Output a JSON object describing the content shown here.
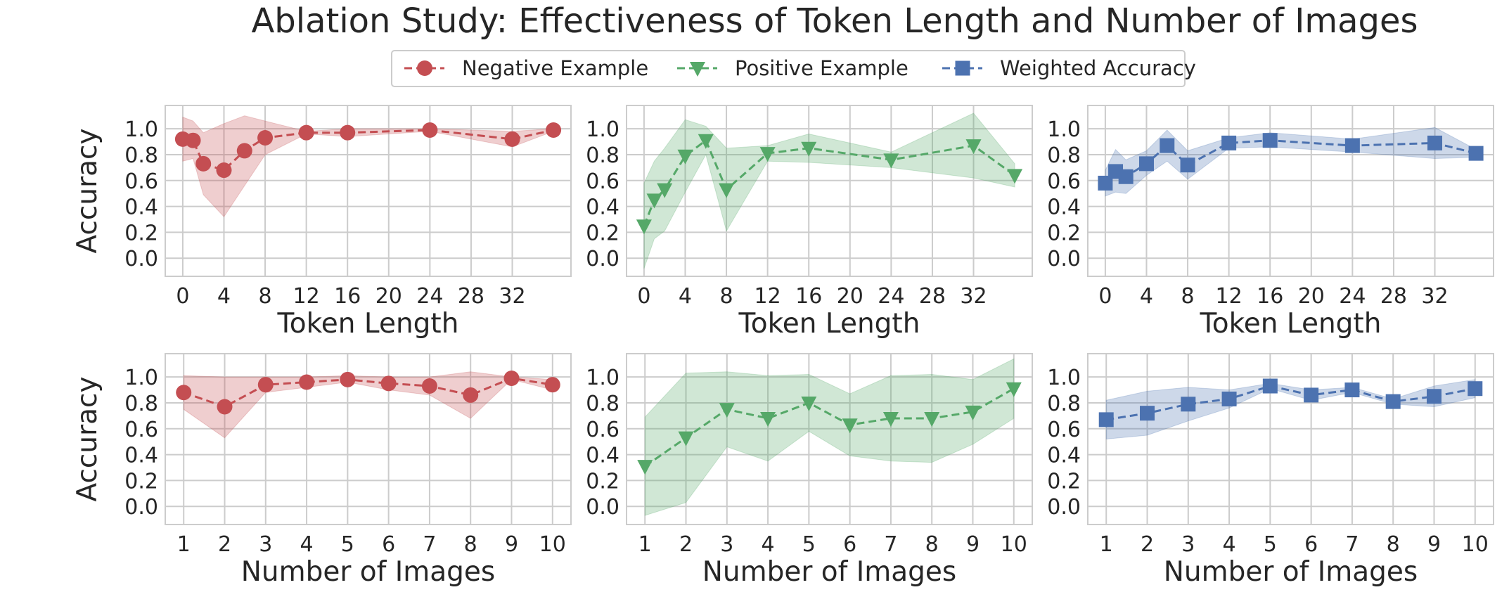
{
  "title": "Ablation Study: Effectiveness of Token Length and Number of Images",
  "legend": [
    {
      "label": "Negative Example",
      "color": "#c44e52",
      "marker": "circle"
    },
    {
      "label": "Positive Example",
      "color": "#55a868",
      "marker": "triangle-down"
    },
    {
      "label": "Weighted Accuracy",
      "color": "#4c72b0",
      "marker": "square"
    }
  ],
  "chart_data": [
    {
      "type": "line",
      "row": 0,
      "col": 0,
      "series_name": "Negative Example",
      "color": "#c44e52",
      "marker": "circle",
      "x": [
        0,
        1,
        2,
        4,
        6,
        8,
        12,
        16,
        24,
        32,
        36
      ],
      "y": [
        0.92,
        0.91,
        0.73,
        0.68,
        0.83,
        0.93,
        0.97,
        0.97,
        0.99,
        0.92,
        0.99
      ],
      "band_lower": [
        0.75,
        0.77,
        0.49,
        0.32,
        0.56,
        0.8,
        0.96,
        0.94,
        0.98,
        0.86,
        0.98
      ],
      "band_upper": [
        1.09,
        1.06,
        0.97,
        1.04,
        1.1,
        1.06,
        0.98,
        1.0,
        1.0,
        0.98,
        1.0
      ],
      "xticks": [
        "0",
        "4",
        "8",
        "12",
        "16",
        "20",
        "24",
        "28",
        "32"
      ],
      "xtick_values": [
        0,
        4,
        8,
        12,
        16,
        20,
        24,
        28,
        32
      ],
      "xlim": [
        -1.7,
        37.7
      ],
      "ylim": [
        -0.14,
        1.18
      ],
      "yticks": [
        "0.0",
        "0.2",
        "0.4",
        "0.6",
        "0.8",
        "1.0"
      ],
      "ytick_values": [
        0,
        0.2,
        0.4,
        0.6,
        0.8,
        1.0
      ],
      "xlabel": "Token Length",
      "ylabel": "Accuracy"
    },
    {
      "type": "line",
      "row": 0,
      "col": 1,
      "series_name": "Positive Example",
      "color": "#55a868",
      "marker": "triangle-down",
      "x": [
        0,
        1,
        2,
        4,
        6,
        8,
        12,
        16,
        24,
        32,
        36
      ],
      "y": [
        0.25,
        0.45,
        0.53,
        0.79,
        0.91,
        0.53,
        0.81,
        0.85,
        0.76,
        0.87,
        0.64
      ],
      "band_lower": [
        -0.08,
        0.15,
        0.21,
        0.51,
        0.8,
        0.21,
        0.75,
        0.74,
        0.7,
        0.62,
        0.55
      ],
      "band_upper": [
        0.58,
        0.75,
        0.85,
        1.07,
        1.02,
        0.85,
        0.87,
        0.96,
        0.82,
        1.12,
        0.73
      ],
      "xticks": [
        "0",
        "4",
        "8",
        "12",
        "16",
        "20",
        "24",
        "28",
        "32"
      ],
      "xtick_values": [
        0,
        4,
        8,
        12,
        16,
        20,
        24,
        28,
        32
      ],
      "xlim": [
        -1.7,
        37.7
      ],
      "ylim": [
        -0.14,
        1.18
      ],
      "yticks": [
        "0.0",
        "0.2",
        "0.4",
        "0.6",
        "0.8",
        "1.0"
      ],
      "ytick_values": [
        0,
        0.2,
        0.4,
        0.6,
        0.8,
        1.0
      ],
      "xlabel": "Token Length",
      "ylabel": ""
    },
    {
      "type": "line",
      "row": 0,
      "col": 2,
      "series_name": "Weighted Accuracy",
      "color": "#4c72b0",
      "marker": "square",
      "x": [
        0,
        1,
        2,
        4,
        6,
        8,
        12,
        16,
        24,
        32,
        36
      ],
      "y": [
        0.58,
        0.67,
        0.63,
        0.73,
        0.87,
        0.72,
        0.89,
        0.91,
        0.87,
        0.89,
        0.81
      ],
      "band_lower": [
        0.48,
        0.51,
        0.5,
        0.64,
        0.75,
        0.61,
        0.85,
        0.86,
        0.82,
        0.77,
        0.78
      ],
      "band_upper": [
        0.68,
        0.84,
        0.76,
        0.83,
        0.99,
        0.83,
        0.93,
        0.97,
        0.92,
        1.01,
        0.84
      ],
      "xticks": [
        "0",
        "4",
        "8",
        "12",
        "16",
        "20",
        "24",
        "28",
        "32"
      ],
      "xtick_values": [
        0,
        4,
        8,
        12,
        16,
        20,
        24,
        28,
        32
      ],
      "xlim": [
        -1.7,
        37.7
      ],
      "ylim": [
        -0.14,
        1.18
      ],
      "yticks": [
        "0.0",
        "0.2",
        "0.4",
        "0.6",
        "0.8",
        "1.0"
      ],
      "ytick_values": [
        0,
        0.2,
        0.4,
        0.6,
        0.8,
        1.0
      ],
      "xlabel": "Token Length",
      "ylabel": ""
    },
    {
      "type": "line",
      "row": 1,
      "col": 0,
      "series_name": "Negative Example",
      "color": "#c44e52",
      "marker": "circle",
      "x": [
        1,
        2,
        3,
        4,
        5,
        6,
        7,
        8,
        9,
        10
      ],
      "y": [
        0.88,
        0.77,
        0.94,
        0.96,
        0.98,
        0.95,
        0.93,
        0.86,
        0.99,
        0.94
      ],
      "band_lower": [
        0.75,
        0.53,
        0.88,
        0.92,
        0.96,
        0.9,
        0.86,
        0.68,
        0.98,
        0.9
      ],
      "band_upper": [
        1.01,
        1.0,
        1.0,
        1.0,
        1.01,
        1.0,
        1.0,
        1.04,
        1.0,
        0.98
      ],
      "xticks": [
        "1",
        "2",
        "3",
        "4",
        "5",
        "6",
        "7",
        "8",
        "9",
        "10"
      ],
      "xtick_values": [
        1,
        2,
        3,
        4,
        5,
        6,
        7,
        8,
        9,
        10
      ],
      "xlim": [
        0.55,
        10.45
      ],
      "ylim": [
        -0.14,
        1.18
      ],
      "yticks": [
        "0.0",
        "0.2",
        "0.4",
        "0.6",
        "0.8",
        "1.0"
      ],
      "ytick_values": [
        0,
        0.2,
        0.4,
        0.6,
        0.8,
        1.0
      ],
      "xlabel": "Number of Images",
      "ylabel": "Accuracy"
    },
    {
      "type": "line",
      "row": 1,
      "col": 1,
      "series_name": "Positive Example",
      "color": "#55a868",
      "marker": "triangle-down",
      "x": [
        1,
        2,
        3,
        4,
        5,
        6,
        7,
        8,
        9,
        10
      ],
      "y": [
        0.31,
        0.53,
        0.75,
        0.68,
        0.8,
        0.63,
        0.68,
        0.68,
        0.73,
        0.91
      ],
      "band_lower": [
        -0.07,
        0.03,
        0.46,
        0.35,
        0.58,
        0.39,
        0.35,
        0.34,
        0.48,
        0.68
      ],
      "band_upper": [
        0.69,
        1.03,
        1.04,
        1.01,
        1.02,
        0.87,
        1.01,
        1.02,
        0.98,
        1.14
      ],
      "xticks": [
        "1",
        "2",
        "3",
        "4",
        "5",
        "6",
        "7",
        "8",
        "9",
        "10"
      ],
      "xtick_values": [
        1,
        2,
        3,
        4,
        5,
        6,
        7,
        8,
        9,
        10
      ],
      "xlim": [
        0.55,
        10.45
      ],
      "ylim": [
        -0.14,
        1.18
      ],
      "yticks": [
        "0.0",
        "0.2",
        "0.4",
        "0.6",
        "0.8",
        "1.0"
      ],
      "ytick_values": [
        0,
        0.2,
        0.4,
        0.6,
        0.8,
        1.0
      ],
      "xlabel": "Number of Images",
      "ylabel": ""
    },
    {
      "type": "line",
      "row": 1,
      "col": 2,
      "series_name": "Weighted Accuracy",
      "color": "#4c72b0",
      "marker": "square",
      "x": [
        1,
        2,
        3,
        4,
        5,
        6,
        7,
        8,
        9,
        10
      ],
      "y": [
        0.67,
        0.72,
        0.79,
        0.83,
        0.93,
        0.86,
        0.9,
        0.81,
        0.85,
        0.91
      ],
      "band_lower": [
        0.52,
        0.55,
        0.66,
        0.76,
        0.91,
        0.82,
        0.88,
        0.79,
        0.77,
        0.84
      ],
      "band_upper": [
        0.82,
        0.89,
        0.92,
        0.9,
        0.95,
        0.9,
        0.92,
        0.83,
        0.93,
        0.98
      ],
      "xticks": [
        "1",
        "2",
        "3",
        "4",
        "5",
        "6",
        "7",
        "8",
        "9",
        "10"
      ],
      "xtick_values": [
        1,
        2,
        3,
        4,
        5,
        6,
        7,
        8,
        9,
        10
      ],
      "xlim": [
        0.55,
        10.45
      ],
      "ylim": [
        -0.14,
        1.18
      ],
      "yticks": [
        "0.0",
        "0.2",
        "0.4",
        "0.6",
        "0.8",
        "1.0"
      ],
      "ytick_values": [
        0,
        0.2,
        0.4,
        0.6,
        0.8,
        1.0
      ],
      "xlabel": "Number of Images",
      "ylabel": ""
    }
  ]
}
